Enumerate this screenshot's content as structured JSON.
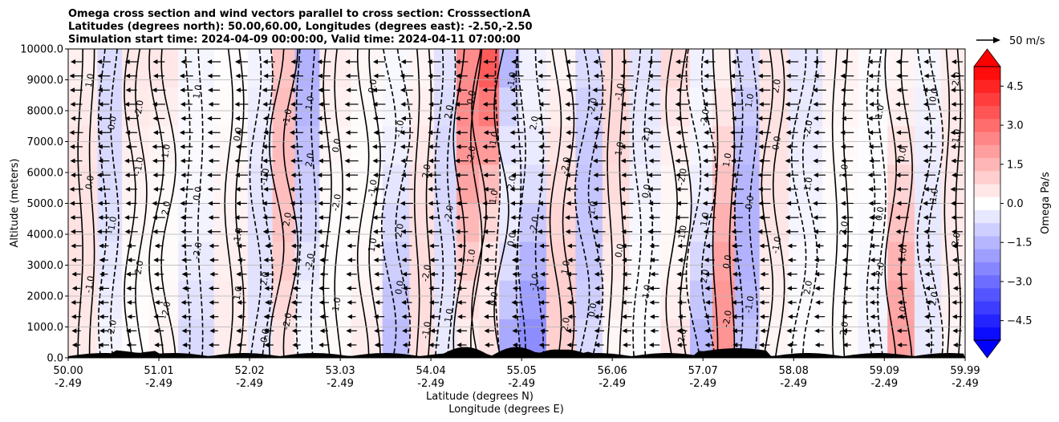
{
  "chart_data": {
    "type": "heatmap",
    "title": [
      "Omega cross section and wind vectors parallel to cross section: CrosssectionA",
      "Latitudes (degrees north): 50.00,60.00, Longitudes (degrees east): -2.50,-2.50",
      "Simulation start time: 2024-04-09 00:00:00, Valid time: 2024-04-11 07:00:00"
    ],
    "ylabel": "Altitude (meters)",
    "xlabel": [
      "Latitude (degrees N)",
      "Longitude (degrees E)"
    ],
    "xlim": [
      50.0,
      59.99
    ],
    "ylim": [
      0,
      10000
    ],
    "x_ticks": [
      {
        "lat": "50.00",
        "lon": "-2.49",
        "value": 50.0
      },
      {
        "lat": "51.01",
        "lon": "-2.49",
        "value": 51.01
      },
      {
        "lat": "52.02",
        "lon": "-2.49",
        "value": 52.02
      },
      {
        "lat": "53.03",
        "lon": "-2.49",
        "value": 53.03
      },
      {
        "lat": "54.04",
        "lon": "-2.49",
        "value": 54.04
      },
      {
        "lat": "55.05",
        "lon": "-2.49",
        "value": 55.05
      },
      {
        "lat": "56.06",
        "lon": "-2.49",
        "value": 56.06
      },
      {
        "lat": "57.07",
        "lon": "-2.49",
        "value": 57.07
      },
      {
        "lat": "58.08",
        "lon": "-2.49",
        "value": 58.08
      },
      {
        "lat": "59.09",
        "lon": "-2.49",
        "value": 59.09
      },
      {
        "lat": "59.99",
        "lon": "-2.49",
        "value": 59.99
      }
    ],
    "y_ticks": [
      {
        "label": "0.0",
        "value": 0
      },
      {
        "label": "1000.0",
        "value": 1000
      },
      {
        "label": "2000.0",
        "value": 2000
      },
      {
        "label": "3000.0",
        "value": 3000
      },
      {
        "label": "4000.0",
        "value": 4000
      },
      {
        "label": "5000.0",
        "value": 5000
      },
      {
        "label": "6000.0",
        "value": 6000
      },
      {
        "label": "7000.0",
        "value": 7000
      },
      {
        "label": "8000.0",
        "value": 8000
      },
      {
        "label": "9000.0",
        "value": 9000
      },
      {
        "label": "10000.0",
        "value": 10000
      }
    ],
    "grid": "horizontal",
    "colorbar": {
      "label": "Omega Pa/s",
      "range": [
        -5.25,
        5.25
      ],
      "ticks": [
        {
          "label": "4.5",
          "value": 4.5
        },
        {
          "label": "3.0",
          "value": 3.0
        },
        {
          "label": "1.5",
          "value": 1.5
        },
        {
          "label": "0.0",
          "value": 0.0
        },
        {
          "label": "−1.5",
          "value": -1.5
        },
        {
          "label": "−3.0",
          "value": -3.0
        },
        {
          "label": "−4.5",
          "value": -4.5
        }
      ],
      "levels_step": 0.5,
      "colormap": "bwr",
      "extend": "both"
    },
    "quiver_key": {
      "label": "50 m/s",
      "value": 50
    },
    "wind_direction": "southward (arrows point toward decreasing latitude)",
    "omega_columns": [
      {
        "lat": 50.2,
        "value": 0.6
      },
      {
        "lat": 50.45,
        "value": -0.8
      },
      {
        "lat": 50.75,
        "value": 0.5
      },
      {
        "lat": 51.05,
        "value": 0.8
      },
      {
        "lat": 51.4,
        "value": -1.0
      },
      {
        "lat": 51.85,
        "value": 0.4
      },
      {
        "lat": 52.15,
        "value": -0.6
      },
      {
        "lat": 52.4,
        "value": 1.4
      },
      {
        "lat": 52.65,
        "value": -1.6
      },
      {
        "lat": 52.95,
        "value": 0.5
      },
      {
        "lat": 53.35,
        "value": 0.6
      },
      {
        "lat": 53.65,
        "value": -1.4
      },
      {
        "lat": 53.95,
        "value": 0.7
      },
      {
        "lat": 54.2,
        "value": -0.8
      },
      {
        "lat": 54.45,
        "value": 2.4
      },
      {
        "lat": 54.7,
        "value": 4.0
      },
      {
        "lat": 54.9,
        "value": -3.5
      },
      {
        "lat": 55.15,
        "value": -2.6
      },
      {
        "lat": 55.5,
        "value": 1.0
      },
      {
        "lat": 55.8,
        "value": -1.2
      },
      {
        "lat": 56.1,
        "value": 0.8
      },
      {
        "lat": 56.4,
        "value": -0.6
      },
      {
        "lat": 56.8,
        "value": 1.4
      },
      {
        "lat": 57.05,
        "value": -1.8
      },
      {
        "lat": 57.3,
        "value": 2.2
      },
      {
        "lat": 57.55,
        "value": -1.6
      },
      {
        "lat": 57.85,
        "value": 0.6
      },
      {
        "lat": 58.2,
        "value": -0.5
      },
      {
        "lat": 58.6,
        "value": 0.4
      },
      {
        "lat": 59.0,
        "value": -0.4
      },
      {
        "lat": 59.25,
        "value": 2.0
      },
      {
        "lat": 59.6,
        "value": -0.5
      },
      {
        "lat": 59.85,
        "value": 0.5
      }
    ],
    "contour_labels": [
      "1.0",
      "0.0",
      "-1.0",
      "2.0",
      "-2.0"
    ]
  }
}
